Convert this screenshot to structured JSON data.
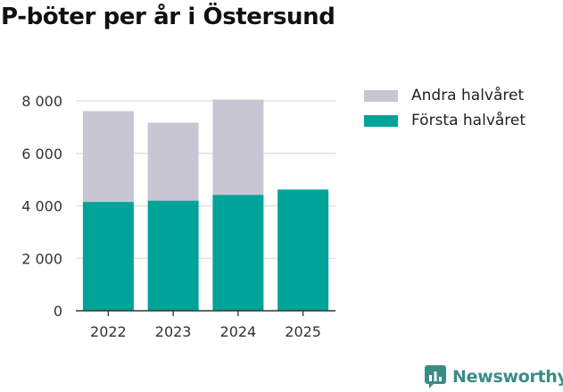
{
  "chart_data": {
    "type": "bar",
    "stacked": true,
    "title": "P-böter per år i Östersund",
    "categories": [
      "2022",
      "2023",
      "2024",
      "2025"
    ],
    "series": [
      {
        "name": "Första halvåret",
        "color": "#00a398",
        "values": [
          4150,
          4200,
          4420,
          4620
        ]
      },
      {
        "name": "Andra halvåret",
        "color": "#c8c6d3",
        "values": [
          3460,
          2970,
          3630,
          0
        ]
      }
    ],
    "legend_order": [
      1,
      0
    ],
    "ylim": [
      0,
      8000
    ],
    "yticks": [
      0,
      2000,
      4000,
      6000,
      8000
    ],
    "ytick_labels": [
      "0",
      "2 000",
      "4 000",
      "6 000",
      "8 000"
    ],
    "xlabel": "",
    "ylabel": "",
    "grid": true,
    "legend_position": "top-right"
  },
  "branding": {
    "name": "Newsworthy",
    "color": "#3a8d85"
  }
}
